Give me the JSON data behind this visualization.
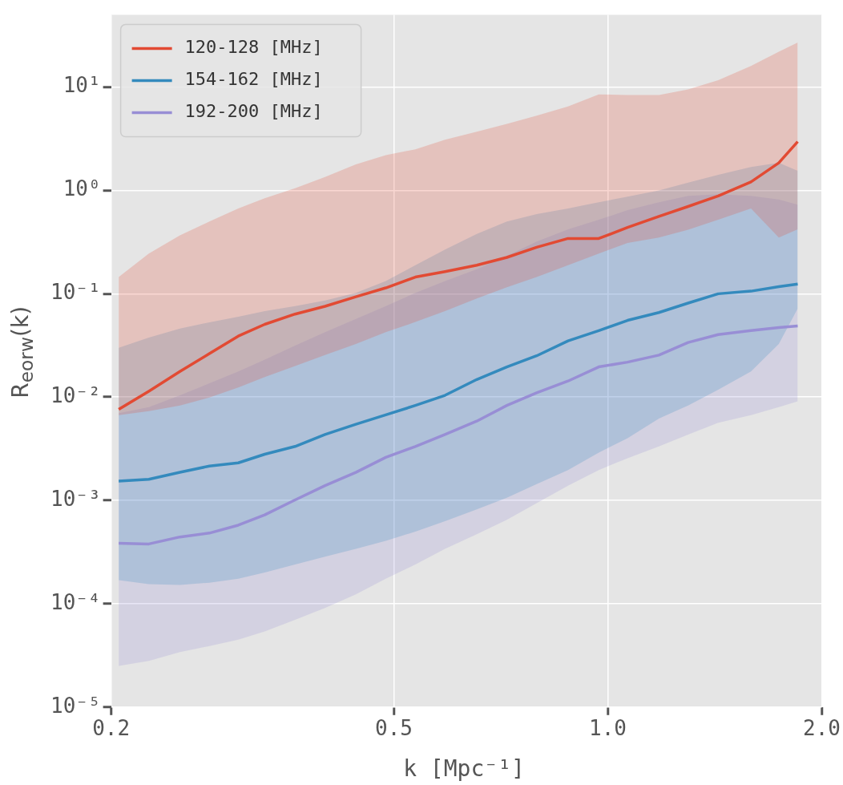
{
  "chart_data": {
    "type": "line",
    "xlabel": "k [Mpc⁻¹]",
    "ylabel": "R$_{eorw}$(k)",
    "log": "xy",
    "grid": true,
    "legend": "top left",
    "marker": "none",
    "line_style": "solid",
    "x": [
      0.205,
      0.226,
      0.25,
      0.275,
      0.302,
      0.329,
      0.363,
      0.4,
      0.442,
      0.487,
      0.536,
      0.59,
      0.654,
      0.721,
      0.794,
      0.879,
      0.971,
      1.066,
      1.18,
      1.297,
      1.43,
      1.59,
      1.74,
      1.85
    ],
    "xlim": [
      0.2,
      2.0
    ],
    "xticks": [
      0.2,
      0.5,
      {
        "value": 1,
        "label": "1.0"
      },
      {
        "value": 2,
        "label": "2.0"
      }
    ],
    "ylim": [
      1e-05,
      50
    ],
    "yticks": [
      {
        "value": 1e-05,
        "label": "10⁻⁵"
      },
      {
        "value": 0.0001,
        "label": "10⁻⁴"
      },
      {
        "value": 0.001,
        "label": "10⁻³"
      },
      {
        "value": 0.01,
        "label": "10⁻²"
      },
      {
        "value": 0.1,
        "label": "10⁻¹"
      },
      {
        "value": 1,
        "label": "10⁰"
      },
      {
        "value": 10,
        "label": "10¹"
      }
    ],
    "series": [
      {
        "name": "120-128 [MHz]",
        "color": "#e24a33",
        "values": [
          0.0076,
          0.0114,
          0.0177,
          0.0263,
          0.0389,
          0.0506,
          0.0636,
          0.0757,
          0.0935,
          0.114,
          0.145,
          0.164,
          0.189,
          0.225,
          0.282,
          0.343,
          0.343,
          0.438,
          0.56,
          0.7,
          0.885,
          1.21,
          1.85,
          2.97
        ],
        "upper": [
          0.145,
          0.245,
          0.368,
          0.5,
          0.67,
          0.84,
          1.05,
          1.35,
          1.79,
          2.2,
          2.5,
          3.1,
          3.7,
          4.4,
          5.3,
          6.5,
          8.5,
          8.4,
          8.4,
          9.5,
          11.7,
          16,
          22,
          27
        ],
        "lower": [
          0.0067,
          0.0073,
          0.0083,
          0.0099,
          0.0124,
          0.0156,
          0.02,
          0.0255,
          0.0327,
          0.0425,
          0.0533,
          0.068,
          0.09,
          0.1155,
          0.145,
          0.189,
          0.245,
          0.31,
          0.35,
          0.416,
          0.52,
          0.67,
          0.35,
          0.42
        ]
      },
      {
        "name": "154-162 [MHz]",
        "color": "#348abd",
        "values": [
          0.00154,
          0.0016,
          0.00187,
          0.00215,
          0.00231,
          0.0028,
          0.00333,
          0.00434,
          0.00545,
          0.00673,
          0.0083,
          0.0104,
          0.0148,
          0.0196,
          0.0251,
          0.035,
          0.044,
          0.0553,
          0.0659,
          0.0813,
          0.1,
          0.106,
          0.117,
          0.124
        ],
        "upper": [
          0.03,
          0.0376,
          0.046,
          0.053,
          0.06,
          0.068,
          0.076,
          0.086,
          0.102,
          0.133,
          0.189,
          0.268,
          0.38,
          0.5,
          0.59,
          0.67,
          0.77,
          0.87,
          1.0,
          1.19,
          1.42,
          1.69,
          1.85,
          1.55
        ],
        "lower": [
          0.000169,
          0.000155,
          0.000152,
          0.00016,
          0.000175,
          0.000201,
          0.00024,
          0.000286,
          0.00034,
          0.000406,
          0.0005,
          0.00063,
          0.00082,
          0.00106,
          0.00144,
          0.00197,
          0.0029,
          0.004,
          0.0062,
          0.0083,
          0.0118,
          0.0177,
          0.0327,
          0.072
        ]
      },
      {
        "name": "192-200 [MHz]",
        "color": "#988ed5",
        "values": [
          0.000385,
          0.000379,
          0.000443,
          0.000483,
          0.000576,
          0.000724,
          0.00101,
          0.00139,
          0.00187,
          0.00261,
          0.00333,
          0.00434,
          0.00585,
          0.0083,
          0.011,
          0.0143,
          0.0196,
          0.0218,
          0.0255,
          0.0338,
          0.0403,
          0.044,
          0.0472,
          0.0489
        ],
        "upper": [
          0.007,
          0.008,
          0.0104,
          0.0136,
          0.0177,
          0.023,
          0.0315,
          0.0425,
          0.057,
          0.076,
          0.102,
          0.133,
          0.173,
          0.233,
          0.32,
          0.42,
          0.52,
          0.645,
          0.77,
          0.885,
          0.92,
          0.885,
          0.82,
          0.73
        ],
        "lower": [
          2.5e-05,
          2.8e-05,
          3.4e-05,
          3.9e-05,
          4.5e-05,
          5.4e-05,
          7e-05,
          9.1e-05,
          0.000123,
          0.000175,
          0.00024,
          0.00034,
          0.00047,
          0.00065,
          0.00094,
          0.00139,
          0.00197,
          0.00256,
          0.00333,
          0.00434,
          0.00565,
          0.0067,
          0.008,
          0.0091
        ]
      }
    ]
  }
}
